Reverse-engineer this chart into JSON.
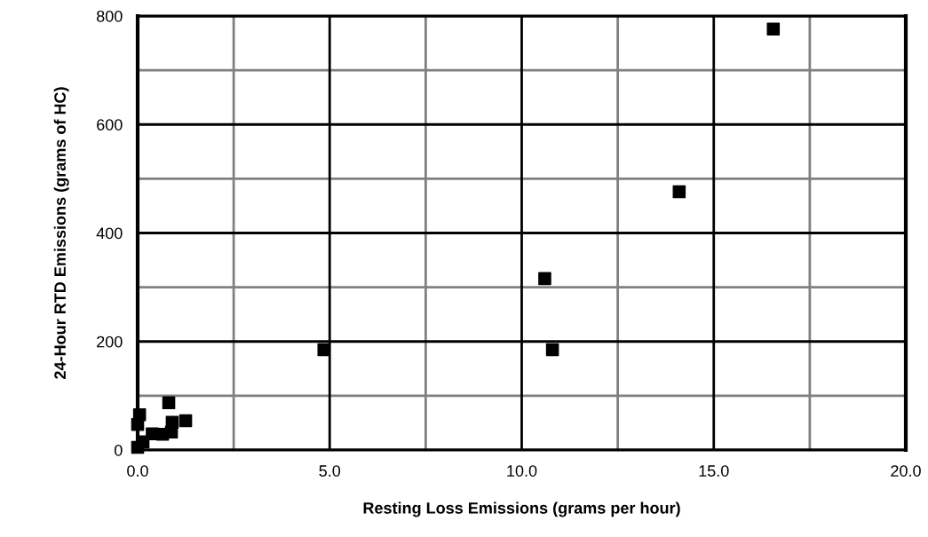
{
  "chart_data": {
    "type": "scatter",
    "xlabel": "Resting Loss Emissions (grams per hour)",
    "ylabel": "24-Hour RTD Emissions (grams of HC)",
    "x": [
      4.85,
      10.6,
      10.8,
      14.1,
      16.55,
      0.81,
      0.05,
      0.9,
      1.25,
      0.88,
      0.65,
      0.38,
      0.14,
      0.0,
      0.0
    ],
    "series": [
      {
        "color": "#000000",
        "values": [
          185,
          316,
          185,
          476,
          776,
          87,
          65,
          51,
          54,
          33,
          29,
          30,
          15,
          47,
          5
        ]
      }
    ],
    "marker": "square",
    "grid": true,
    "xlim": [
      0,
      20
    ],
    "xticks": [
      {
        "value": 0,
        "label": "0.0"
      },
      {
        "value": 5,
        "label": "5.0"
      },
      {
        "value": 10,
        "label": "10.0"
      },
      {
        "value": 15,
        "label": "15.0"
      },
      {
        "value": 20,
        "label": "20.0"
      }
    ],
    "ylim": [
      0,
      800
    ],
    "yticks": [
      0,
      200,
      400,
      600,
      800
    ]
  }
}
